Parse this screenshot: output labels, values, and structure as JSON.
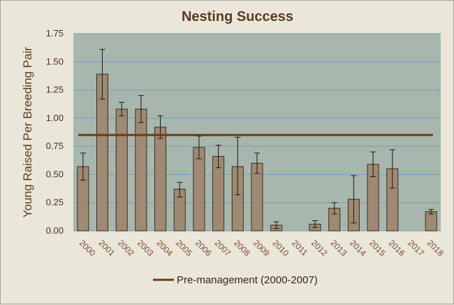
{
  "chart_data": {
    "type": "bar",
    "title": "Nesting Success",
    "ylabel": "Young Raised  Per Breeding Pair",
    "xlabel": "",
    "ylim": [
      0,
      1.75
    ],
    "yticks": [
      "0.00",
      "0.25",
      "0.50",
      "0.75",
      "1.00",
      "1.25",
      "1.50",
      "1.75"
    ],
    "categories": [
      "2000",
      "2001",
      "2002",
      "2003",
      "2004",
      "2005",
      "2006",
      "2007",
      "2008",
      "2009",
      "2010",
      "2011",
      "2012",
      "2013",
      "2014",
      "2015",
      "2016",
      "2017",
      "2018"
    ],
    "values": [
      0.57,
      1.39,
      1.08,
      1.08,
      0.92,
      0.37,
      0.74,
      0.66,
      0.57,
      0.6,
      0.05,
      null,
      0.06,
      0.2,
      0.28,
      0.59,
      0.55,
      null,
      0.17
    ],
    "error_low": [
      0.45,
      1.17,
      1.02,
      0.96,
      0.82,
      0.3,
      0.64,
      0.56,
      0.32,
      0.51,
      0.02,
      null,
      0.03,
      0.15,
      0.07,
      0.48,
      0.38,
      null,
      0.15
    ],
    "error_high": [
      0.69,
      1.61,
      1.14,
      1.2,
      1.02,
      0.43,
      0.84,
      0.76,
      0.83,
      0.69,
      0.08,
      null,
      0.09,
      0.25,
      0.49,
      0.7,
      0.72,
      null,
      0.19
    ],
    "reference_line": {
      "name": "Pre-management (2000-2007)",
      "value": 0.85,
      "color": "#6b3a13"
    },
    "grid": true,
    "legend_position": "bottom",
    "colors": {
      "bar": "#9e8a72",
      "bar_edge": "#3b2a1a",
      "plot_bg": "#a8b7ad",
      "grid": "#6f9fb7"
    }
  }
}
